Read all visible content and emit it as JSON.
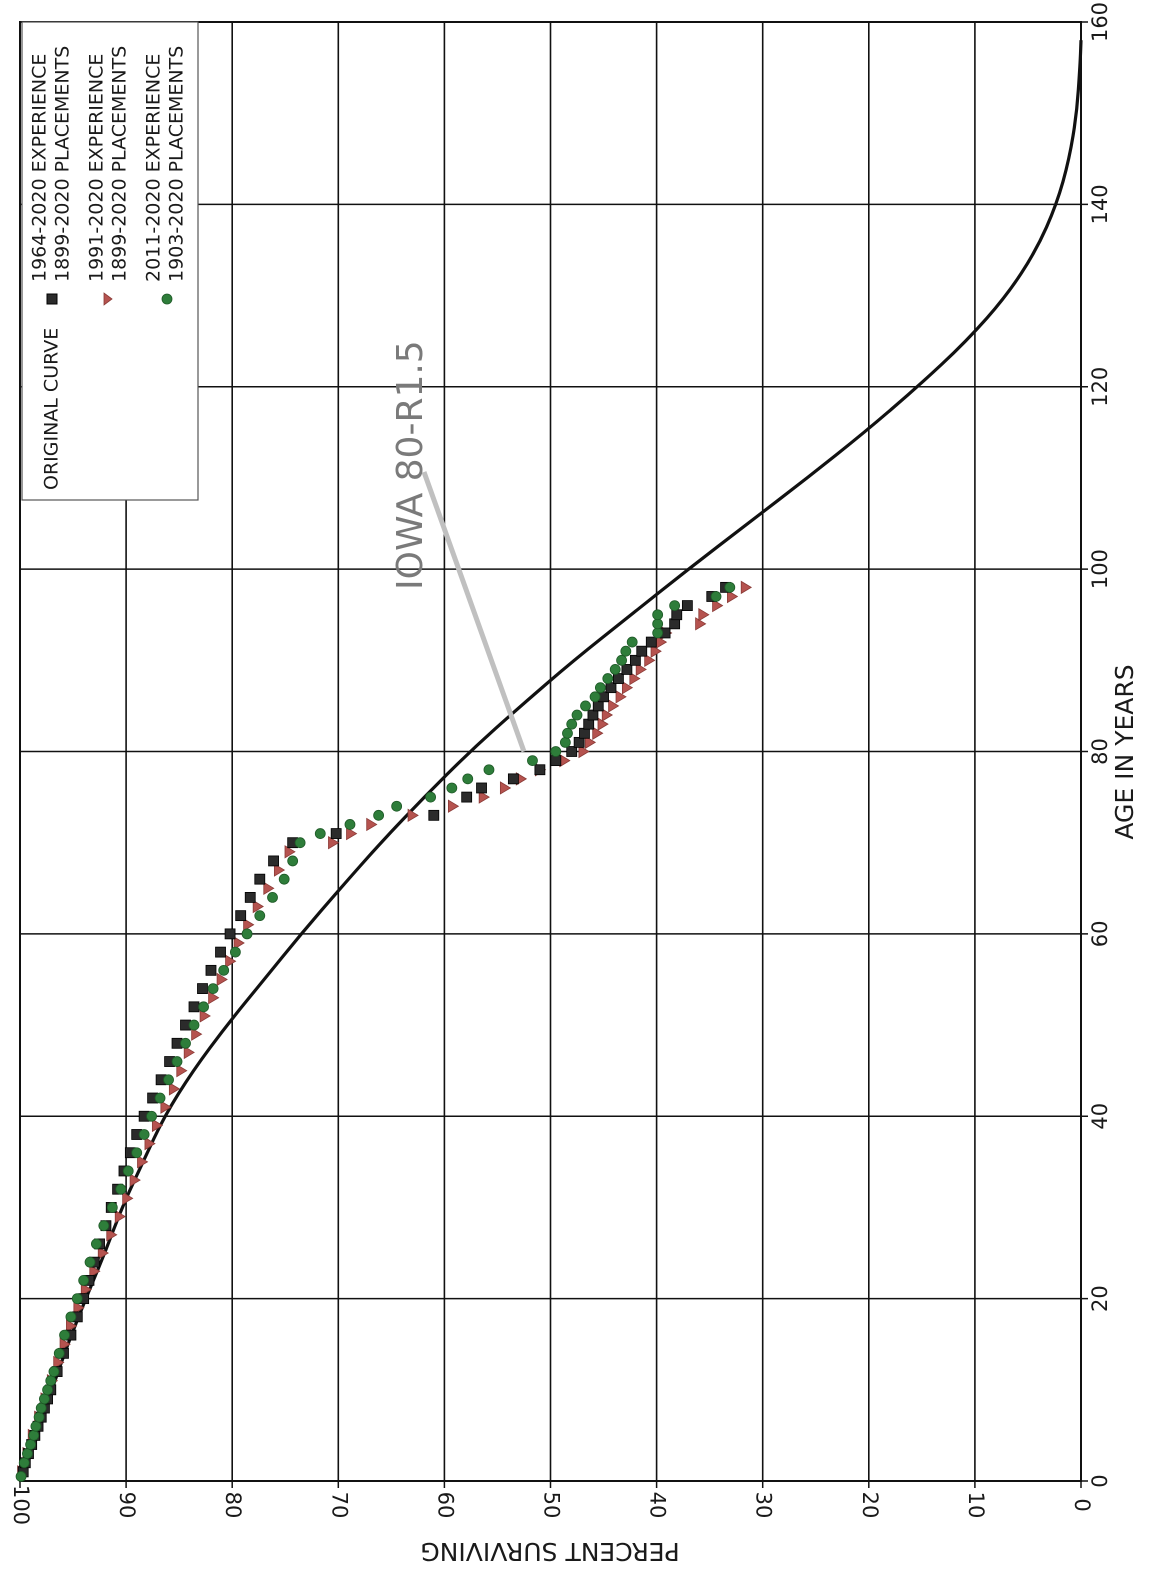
{
  "chart_data": {
    "type": "scatter",
    "orientation": "rotated-90-clockwise",
    "xlabel": "AGE IN YEARS",
    "ylabel": "PERCENT SURVIVING",
    "xlim": [
      0,
      160
    ],
    "ylim": [
      0,
      100
    ],
    "x_ticks": [
      "0",
      "20",
      "40",
      "60",
      "80",
      "100",
      "120",
      "140",
      "160"
    ],
    "y_ticks": [
      "0",
      "10",
      "20",
      "30",
      "40",
      "50",
      "60",
      "70",
      "80",
      "90",
      "100"
    ],
    "grid": true,
    "legend_position": "top-left",
    "annotation": {
      "text": "IOWA 80-R1.5",
      "points_to": [
        80,
        52.5
      ]
    },
    "colors": {
      "curve": "#111111",
      "series_1": "#2b2b2b",
      "series_2": "#b5534f",
      "series_3": "#2e7d3a",
      "annotation_text": "#7a7a7a",
      "annotation_line": "#c0c0c0",
      "grid": "#111111"
    },
    "curve": {
      "name": "ORIGINAL CURVE",
      "x": [
        0,
        5,
        10,
        15,
        20,
        25,
        30,
        35,
        40,
        45,
        50,
        55,
        60,
        65,
        70,
        75,
        80,
        85,
        90,
        95,
        100,
        105,
        110,
        115,
        120,
        125,
        130,
        135,
        140,
        145,
        150,
        155,
        158
      ],
      "y": [
        100,
        98.5,
        97,
        95.5,
        93.8,
        92,
        90.4,
        88.4,
        86.4,
        83.7,
        80.5,
        77,
        73.5,
        69.8,
        66,
        61.9,
        57.6,
        52.8,
        47.8,
        42.4,
        37,
        31.4,
        25.8,
        20.4,
        15.4,
        10.8,
        7,
        4.2,
        2.3,
        1.1,
        0.4,
        0.1,
        0
      ]
    },
    "series": [
      {
        "marker": "square",
        "legend_lines": [
          "1964-2020 EXPERIENCE",
          "1899-2020 PLACEMENTS"
        ],
        "x": [
          1,
          2,
          3,
          4,
          5,
          6,
          7,
          8,
          9,
          10,
          12,
          14,
          16,
          18,
          20,
          22,
          24,
          26,
          28,
          30,
          32,
          34,
          36,
          38,
          40,
          42,
          44,
          46,
          48,
          50,
          52,
          54,
          56,
          58,
          60,
          62,
          64,
          66,
          68,
          70,
          71,
          73,
          75,
          76,
          77,
          78,
          79,
          80,
          81,
          82,
          83,
          84,
          85,
          86,
          87,
          88,
          89,
          90,
          91,
          92,
          93,
          94,
          95,
          96,
          97,
          98
        ],
        "y": [
          99.7,
          99.5,
          99.2,
          98.9,
          98.6,
          98.3,
          98,
          97.7,
          97.4,
          97.1,
          96.5,
          95.9,
          95.2,
          94.6,
          94,
          93.5,
          93,
          92.5,
          91.9,
          91.4,
          90.8,
          90.2,
          89.6,
          89,
          88.3,
          87.5,
          86.7,
          85.9,
          85.2,
          84.4,
          83.6,
          82.8,
          82,
          81.1,
          80.2,
          79.2,
          78.3,
          77.4,
          76.1,
          74.3,
          70.2,
          61,
          57.9,
          56.5,
          53.5,
          51,
          49.5,
          48,
          47.3,
          46.8,
          46.4,
          46,
          45.5,
          45,
          44.3,
          43.6,
          42.8,
          42,
          41.4,
          40.5,
          39.2,
          38.3,
          38.1,
          37.1,
          34.8,
          33.5
        ]
      },
      {
        "marker": "triangle",
        "legend_lines": [
          "1991-2020 EXPERIENCE",
          "1899-2020 PLACEMENTS"
        ],
        "x": [
          1,
          3,
          5,
          7,
          9,
          11,
          13,
          15,
          17,
          19,
          21,
          23,
          25,
          27,
          29,
          31,
          33,
          35,
          37,
          39,
          41,
          43,
          45,
          47,
          49,
          51,
          53,
          55,
          57,
          59,
          61,
          63,
          65,
          67,
          69,
          70,
          71,
          72,
          73,
          74,
          75,
          76,
          77,
          78,
          79,
          80,
          81,
          82,
          83,
          84,
          85,
          86,
          87,
          88,
          89,
          90,
          91,
          92,
          93,
          94,
          95,
          96,
          97,
          98
        ],
        "y": [
          99.8,
          99.3,
          98.8,
          98.2,
          97.6,
          97,
          96.4,
          95.8,
          95.2,
          94.5,
          93.8,
          93,
          92.2,
          91.4,
          90.6,
          89.9,
          89.2,
          88.5,
          87.8,
          87.1,
          86.3,
          85.5,
          84.8,
          84.1,
          83.4,
          82.6,
          81.8,
          81,
          80.2,
          79.4,
          78.5,
          77.6,
          76.6,
          75.6,
          74.6,
          70.5,
          68.8,
          66.9,
          63,
          59.2,
          56.3,
          54.3,
          52.8,
          51,
          48.7,
          46.9,
          46.3,
          45.6,
          45.1,
          44.7,
          44.1,
          43.4,
          42.8,
          42.1,
          41.5,
          40.7,
          40.1,
          39.6,
          39.1,
          35.9,
          35.6,
          34.3,
          32.9,
          31.6
        ]
      },
      {
        "marker": "circle",
        "legend_lines": [
          "2011-2020 EXPERIENCE",
          "1903-2020 PLACEMENTS"
        ],
        "x": [
          0.5,
          2,
          3,
          4,
          5,
          6,
          7,
          8,
          9,
          10,
          11,
          12,
          14,
          16,
          18,
          20,
          22,
          24,
          26,
          28,
          30,
          32,
          34,
          36,
          38,
          40,
          42,
          44,
          46,
          48,
          50,
          52,
          54,
          56,
          58,
          60,
          62,
          64,
          66,
          68,
          70,
          71,
          72,
          73,
          74,
          75,
          76,
          77,
          78,
          79,
          80,
          81,
          82,
          83,
          84,
          85,
          86,
          87,
          88,
          89,
          90,
          91,
          92,
          93,
          94,
          95,
          96,
          97,
          98
        ],
        "y": [
          99.9,
          99.6,
          99.3,
          99,
          98.7,
          98.5,
          98.2,
          98,
          97.7,
          97.4,
          97.1,
          96.8,
          96.3,
          95.8,
          95.2,
          94.6,
          94,
          93.4,
          92.8,
          92.1,
          91.3,
          90.5,
          89.8,
          89,
          88.3,
          87.6,
          86.8,
          86,
          85.2,
          84.4,
          83.6,
          82.7,
          81.8,
          80.8,
          79.7,
          78.6,
          77.4,
          76.2,
          75.1,
          74.3,
          73.6,
          71.7,
          68.9,
          66.2,
          64.5,
          61.3,
          59.3,
          57.8,
          55.8,
          51.7,
          49.5,
          48.6,
          48.4,
          48,
          47.5,
          46.7,
          45.8,
          45.3,
          44.6,
          43.9,
          43.3,
          42.9,
          42.3,
          39.9,
          39.9,
          39.9,
          38.3,
          34.4,
          33.1
        ]
      }
    ]
  }
}
